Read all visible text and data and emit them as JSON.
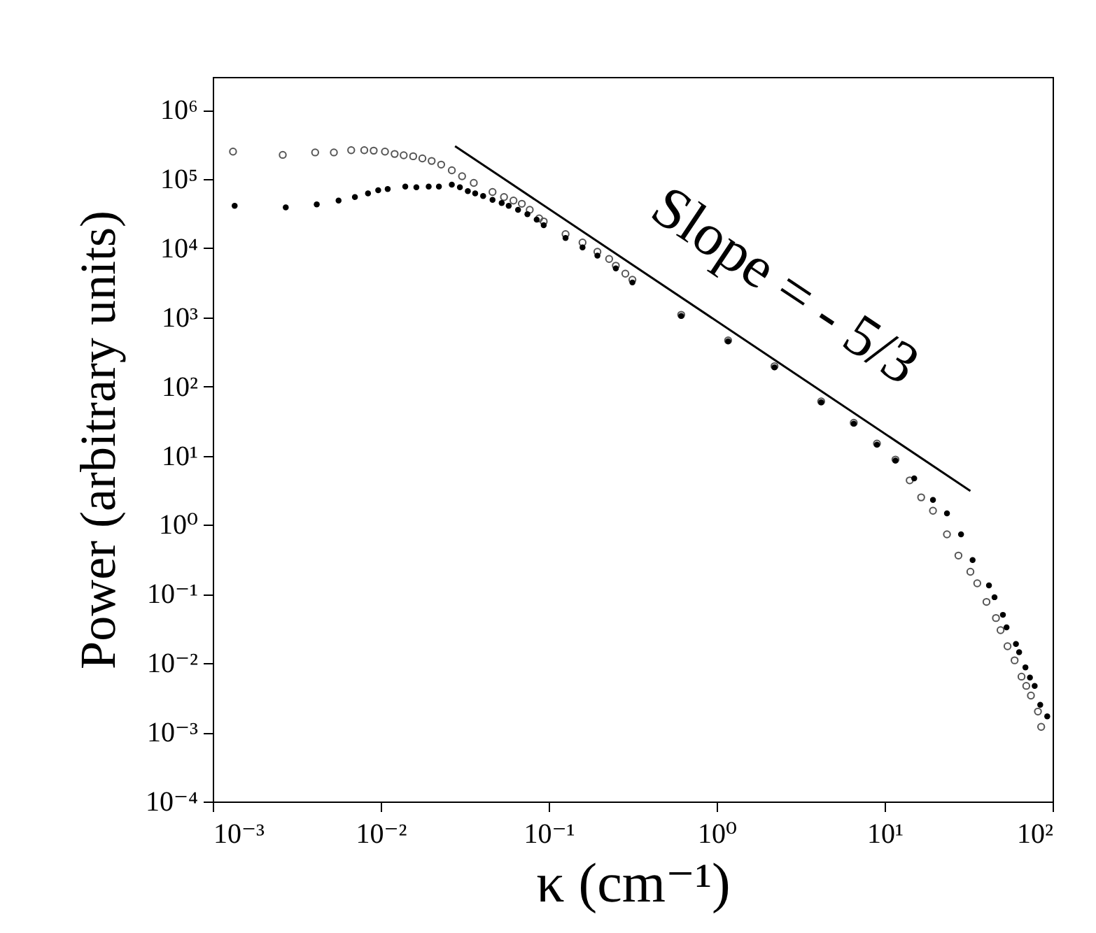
{
  "chart_data": {
    "type": "scatter",
    "xlabel": "κ (cm⁻¹)",
    "ylabel": "Power (arbitrary units)",
    "log": "xy",
    "xlim": [
      0.001,
      100
    ],
    "ylim": [
      0.0001,
      3000000
    ],
    "xticks": [
      {
        "value": 0.001,
        "label": "10⁻³"
      },
      {
        "value": 0.01,
        "label": "10⁻²"
      },
      {
        "value": 0.1,
        "label": "10⁻¹"
      },
      {
        "value": 1,
        "label": "10⁰"
      },
      {
        "value": 10,
        "label": "10¹"
      },
      {
        "value": 100,
        "label": "10²"
      }
    ],
    "yticks": [
      {
        "value": 0.0001,
        "label": "10⁻⁴"
      },
      {
        "value": 0.001,
        "label": "10⁻³"
      },
      {
        "value": 0.01,
        "label": "10⁻²"
      },
      {
        "value": 0.1,
        "label": "10⁻¹"
      },
      {
        "value": 1,
        "label": "10⁰"
      },
      {
        "value": 10,
        "label": "10¹"
      },
      {
        "value": 100,
        "label": "10²"
      },
      {
        "value": 1000,
        "label": "10³"
      },
      {
        "value": 10000,
        "label": "10⁴"
      },
      {
        "value": 100000,
        "label": "10⁵"
      },
      {
        "value": 1000000,
        "label": "10⁶"
      }
    ],
    "grid": false,
    "annotations": [
      "Slope = - 5/3"
    ],
    "series": [
      {
        "marker": "circle",
        "color": "#555555",
        "x": [
          0.00132,
          0.00261,
          0.00407,
          0.00526,
          0.00667,
          0.00798,
          0.00908,
          0.0106,
          0.0121,
          0.0137,
          0.0156,
          0.0177,
          0.0201,
          0.0229,
          0.0265,
          0.0305,
          0.0358,
          0.0463,
          0.0542,
          0.0617,
          0.0692,
          0.0771,
          0.0877,
          0.0934,
          0.126,
          0.159,
          0.195,
          0.229,
          0.251,
          0.286,
          0.315,
          0.615,
          1.17,
          2.21,
          4.19,
          6.55,
          9.0,
          11.6,
          14.1,
          16.5,
          19.4,
          23.5,
          27.5,
          32.4,
          35.6,
          40.4,
          46.0,
          49.0,
          53.9,
          59.4,
          65.3,
          69.7,
          74.3,
          81.8,
          85.5
        ],
        "values": [
          250000,
          224000,
          243000,
          243000,
          262000,
          262000,
          258000,
          250000,
          231000,
          221000,
          214000,
          199000,
          183000,
          162000,
          134000,
          110000,
          88000,
          65000,
          55000,
          49000,
          44000,
          36000,
          27000,
          24400,
          16000,
          12100,
          8900,
          7000,
          5600,
          4300,
          3500,
          1090,
          464,
          197,
          61,
          30,
          15,
          8.8,
          4.4,
          2.5,
          1.6,
          0.73,
          0.36,
          0.21,
          0.143,
          0.077,
          0.045,
          0.03,
          0.0176,
          0.011,
          0.0064,
          0.0047,
          0.0034,
          0.002,
          0.0012
        ]
      },
      {
        "marker": "circle",
        "color": "#000000",
        "x": [
          0.00135,
          0.00272,
          0.00416,
          0.00561,
          0.00702,
          0.0084,
          0.00966,
          0.011,
          0.014,
          0.0163,
          0.0193,
          0.0222,
          0.0265,
          0.0296,
          0.033,
          0.0365,
          0.0407,
          0.0463,
          0.0525,
          0.0578,
          0.0657,
          0.0747,
          0.0848,
          0.0934,
          0.126,
          0.159,
          0.195,
          0.251,
          0.315,
          0.615,
          1.17,
          2.21,
          4.19,
          6.55,
          9.0,
          11.6,
          15.0,
          19.4,
          23.5,
          28.5,
          33.4,
          41.8,
          45.1,
          50.6,
          53.2,
          60.5,
          63.2,
          68.9,
          73.3,
          78.2,
          84.4,
          92.9
        ],
        "values": [
          41000,
          39000,
          43000,
          49000,
          55000,
          62000,
          69000,
          72000,
          78000,
          76000,
          78000,
          78000,
          83000,
          76000,
          67000,
          62000,
          57000,
          50000,
          45000,
          41000,
          36000,
          31000,
          26000,
          21500,
          14100,
          10300,
          7800,
          5100,
          3200,
          1050,
          450,
          190,
          59,
          29,
          14.5,
          8.5,
          4.7,
          2.3,
          1.47,
          0.73,
          0.31,
          0.133,
          0.09,
          0.05,
          0.033,
          0.019,
          0.0144,
          0.0087,
          0.0062,
          0.0047,
          0.0025,
          0.0017
        ]
      },
      {
        "type": "line",
        "color": "#000000",
        "line_style": "solid",
        "x": [
          0.0277,
          32.4
        ],
        "values": [
          300000,
          3.1
        ]
      }
    ]
  }
}
